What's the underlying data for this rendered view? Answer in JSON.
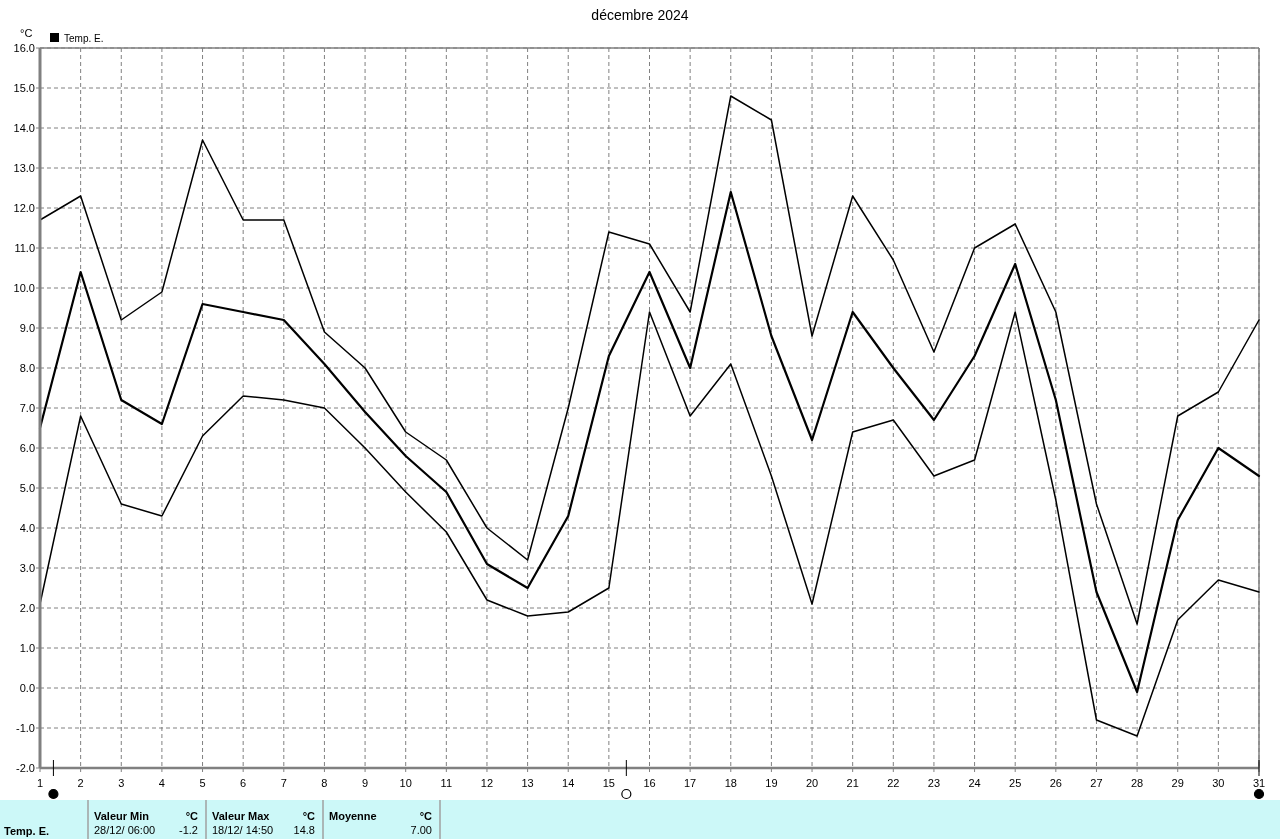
{
  "chart_data": {
    "type": "line",
    "title": "décembre 2024",
    "ylabel": "°C",
    "x": [
      1,
      2,
      3,
      4,
      5,
      6,
      7,
      8,
      9,
      10,
      11,
      12,
      13,
      14,
      15,
      16,
      17,
      18,
      19,
      20,
      21,
      22,
      23,
      24,
      25,
      26,
      27,
      28,
      29,
      30,
      31
    ],
    "xlim": [
      1,
      31
    ],
    "xticks": [
      1,
      2,
      3,
      4,
      5,
      6,
      7,
      8,
      9,
      10,
      11,
      12,
      13,
      14,
      15,
      16,
      17,
      18,
      19,
      20,
      21,
      22,
      23,
      24,
      25,
      26,
      27,
      28,
      29,
      30,
      31
    ],
    "ylim": [
      -2,
      16
    ],
    "yticks": [
      {
        "value": -2,
        "label": "-2.0"
      },
      {
        "value": -1,
        "label": "-1.0"
      },
      {
        "value": 0,
        "label": "0.0"
      },
      {
        "value": 1,
        "label": "1.0"
      },
      {
        "value": 2,
        "label": "2.0"
      },
      {
        "value": 3,
        "label": "3.0"
      },
      {
        "value": 4,
        "label": "4.0"
      },
      {
        "value": 5,
        "label": "5.0"
      },
      {
        "value": 6,
        "label": "6.0"
      },
      {
        "value": 7,
        "label": "7.0"
      },
      {
        "value": 8,
        "label": "8.0"
      },
      {
        "value": 9,
        "label": "9.0"
      },
      {
        "value": 10,
        "label": "10.0"
      },
      {
        "value": 11,
        "label": "11.0"
      },
      {
        "value": 12,
        "label": "12.0"
      },
      {
        "value": 13,
        "label": "13.0"
      },
      {
        "value": 14,
        "label": "14.0"
      },
      {
        "value": 15,
        "label": "15.0"
      },
      {
        "value": 16,
        "label": "16.0"
      }
    ],
    "grid": true,
    "legend": "top left",
    "series": [
      {
        "color": "#000000",
        "values": [
          11.7,
          12.3,
          9.2,
          9.9,
          13.7,
          11.7,
          11.7,
          8.9,
          8.0,
          6.4,
          5.7,
          4.0,
          3.2,
          7.0,
          11.4,
          11.1,
          9.4,
          14.8,
          14.2,
          8.8,
          12.3,
          10.7,
          8.4,
          11.0,
          11.6,
          9.4,
          4.6,
          1.6,
          6.8,
          7.4,
          9.2
        ]
      },
      {
        "name": "Temp. E.",
        "color": "#000000",
        "values": [
          6.5,
          10.4,
          7.2,
          6.6,
          9.6,
          9.4,
          9.2,
          8.1,
          6.9,
          5.8,
          4.9,
          3.1,
          2.5,
          4.3,
          8.3,
          10.4,
          8.0,
          12.4,
          8.8,
          6.2,
          9.4,
          8.0,
          6.7,
          8.3,
          10.6,
          7.2,
          2.4,
          -0.1,
          4.2,
          6.0,
          5.3
        ]
      },
      {
        "color": "#000000",
        "values": [
          2.1,
          6.8,
          4.6,
          4.3,
          6.3,
          7.3,
          7.2,
          7.0,
          6.0,
          4.9,
          3.9,
          2.2,
          1.8,
          1.9,
          2.5,
          9.4,
          6.8,
          8.1,
          5.3,
          2.1,
          6.4,
          6.7,
          5.3,
          5.7,
          9.4,
          4.7,
          -0.8,
          -1.2,
          1.7,
          2.7,
          2.4
        ]
      }
    ],
    "annotations": [
      "Valeur Min",
      "°C",
      "28/12/ 06:00",
      "-1.2",
      "Valeur Max",
      "°C",
      "18/12/ 14:50",
      "14.8",
      "Moyenne",
      "°C",
      "7.00"
    ]
  }
}
